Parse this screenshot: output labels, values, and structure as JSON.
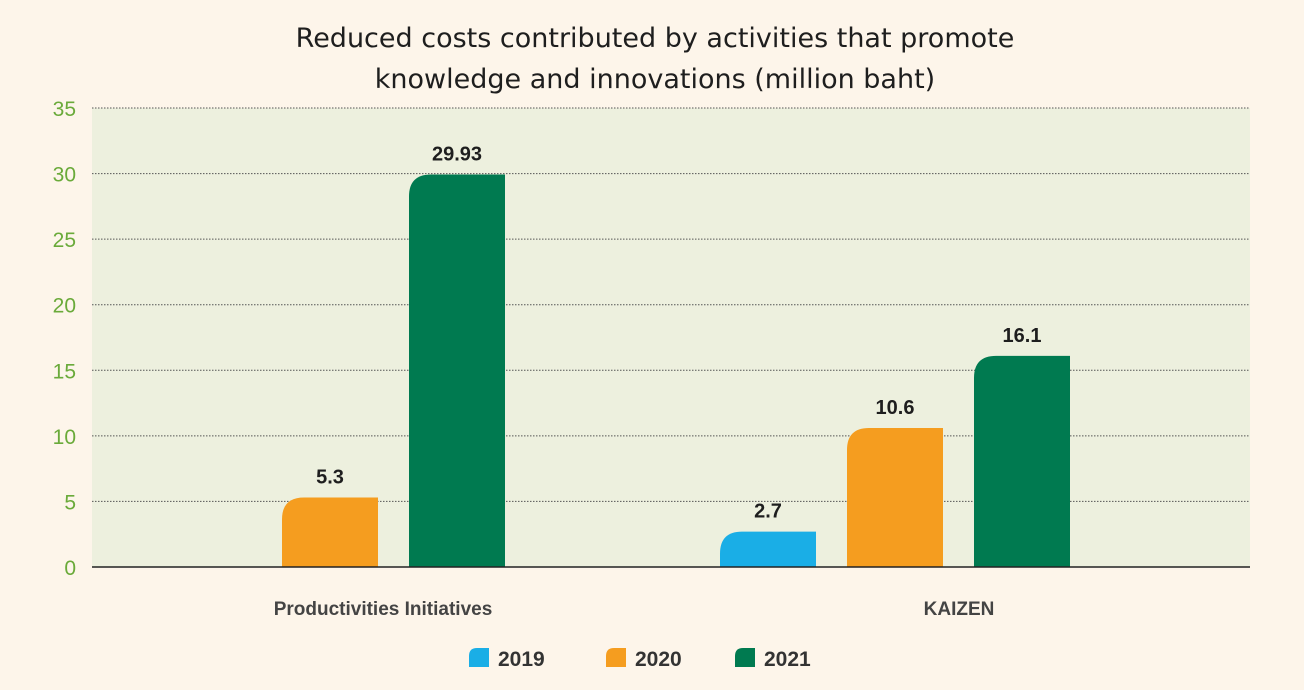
{
  "chart_data": {
    "type": "bar",
    "title_lines": [
      "Reduced costs contributed by activities that promote",
      "knowledge and innovations (million baht)"
    ],
    "categories": [
      "Productivities Initiatives",
      "KAIZEN"
    ],
    "series": [
      {
        "name": "2019",
        "color": "#1aaee6",
        "values": [
          null,
          2.7
        ],
        "labels": [
          "",
          "2.7"
        ]
      },
      {
        "name": "2020",
        "color": "#f59d1f",
        "values": [
          5.3,
          10.6
        ],
        "labels": [
          "5.3",
          "10.6"
        ]
      },
      {
        "name": "2021",
        "color": "#007a50",
        "values": [
          29.93,
          16.1
        ],
        "labels": [
          "29.93",
          "16.1"
        ]
      }
    ],
    "ylim": [
      0,
      35
    ],
    "yticks": [
      0,
      5,
      10,
      15,
      20,
      25,
      30,
      35
    ],
    "grid": true,
    "legend": "bottom-center",
    "plot_background": "#edf0de",
    "tick_color": "#6aaa3a"
  }
}
